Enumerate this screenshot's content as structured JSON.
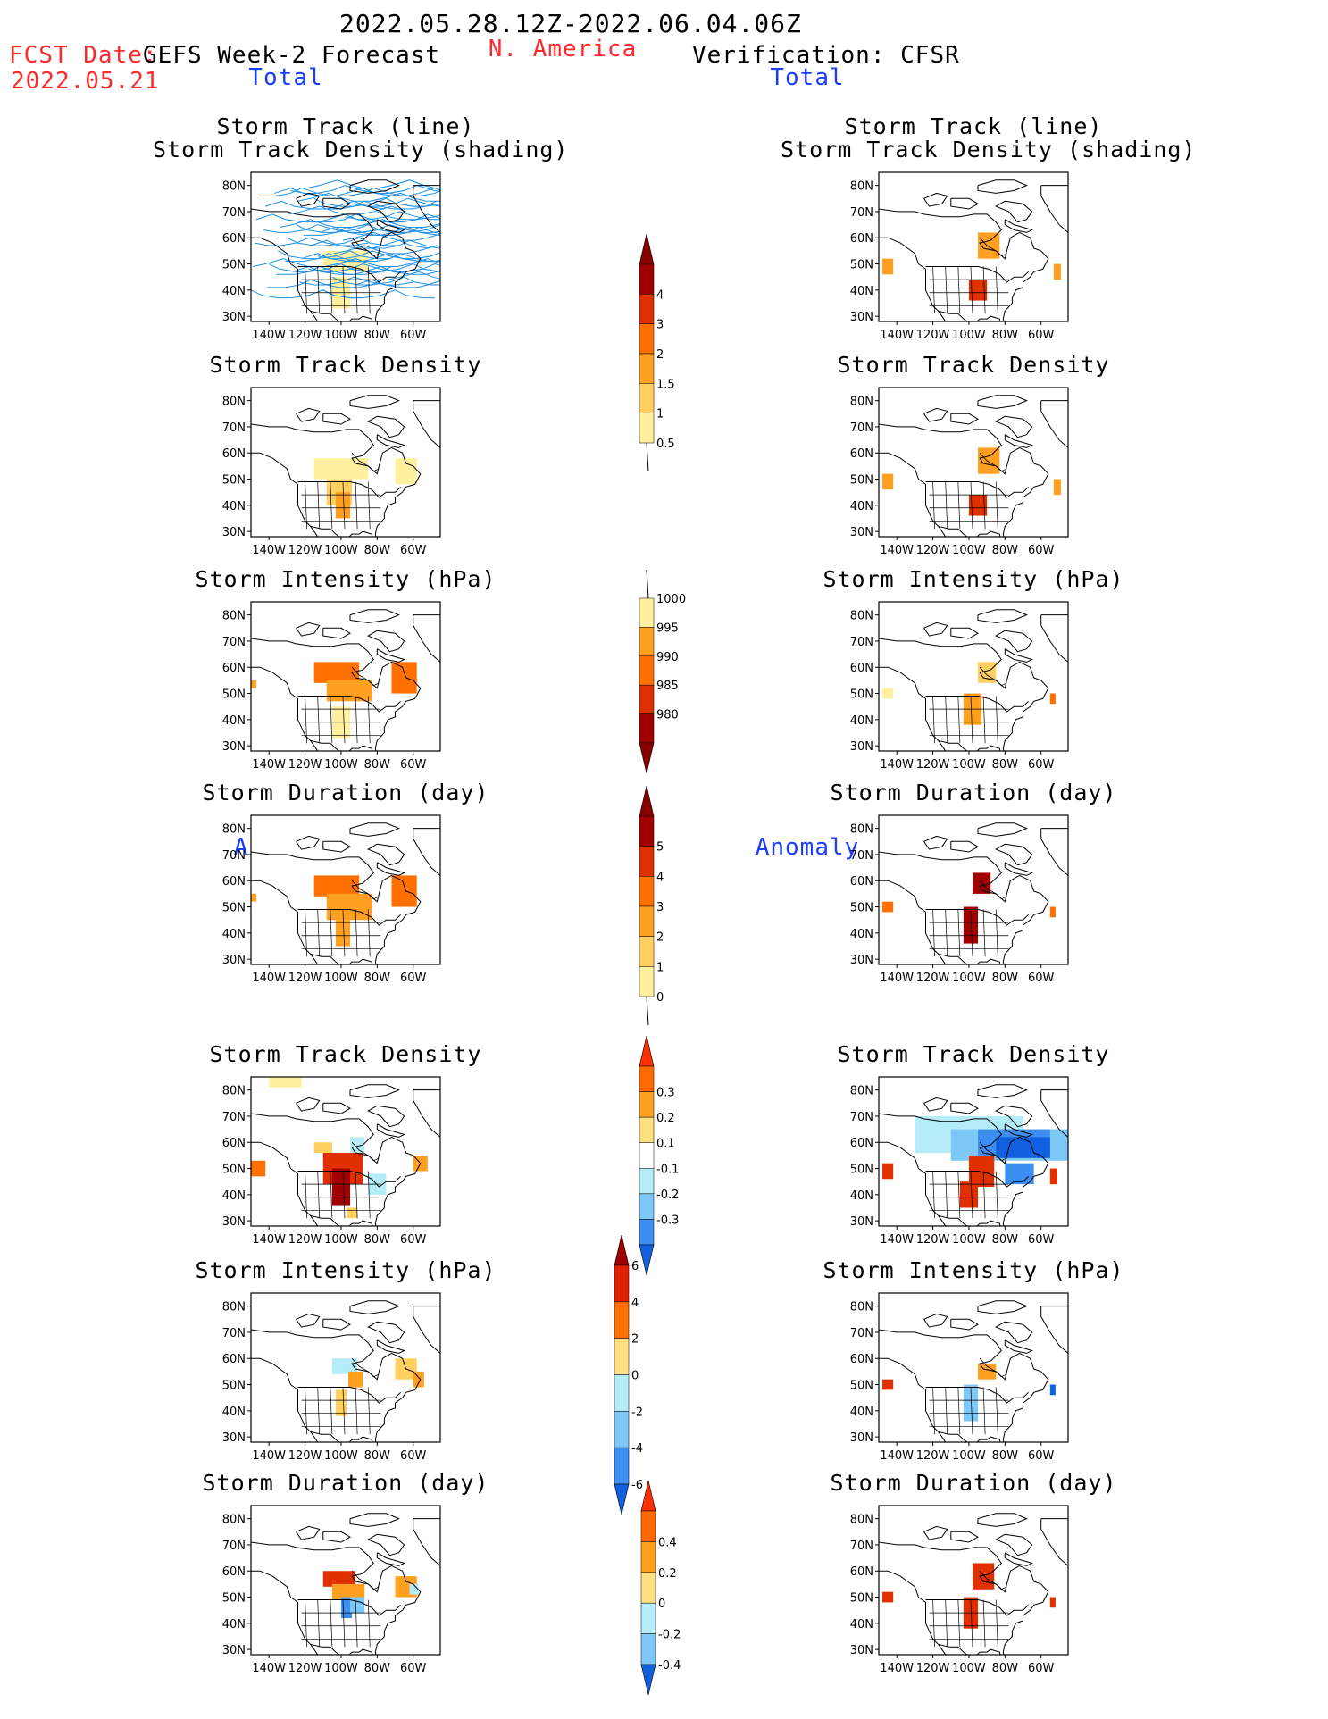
{
  "header": {
    "date_range": "2022.05.28.12Z-2022.06.04.06Z",
    "region": "N. America",
    "fcst_date_label": "FCST Date:",
    "fcst_date": "2022.05.21",
    "left_title": "GEFS Week-2 Forecast",
    "right_title": "Verification: CFSR"
  },
  "sections": {
    "total_label": "Total",
    "anomaly_label": "Anomaly"
  },
  "axes": {
    "lat_ticks": [
      "80N",
      "70N",
      "60N",
      "50N",
      "40N",
      "30N"
    ],
    "lon_ticks": [
      "140W",
      "120W",
      "100W",
      "80W",
      "60W"
    ]
  },
  "panels": {
    "left": [
      {
        "title_lines": [
          "Storm Track (line)",
          "Storm Track Density (shading)"
        ],
        "type": "tracks"
      },
      {
        "title_lines": [
          "Storm Track Density"
        ],
        "type": "density"
      },
      {
        "title_lines": [
          "Storm Intensity (hPa)"
        ],
        "type": "intensity"
      },
      {
        "title_lines": [
          "Storm Duration (day)"
        ],
        "type": "duration"
      },
      {
        "title_lines": [
          "Storm Track Density"
        ],
        "type": "anom_density"
      },
      {
        "title_lines": [
          "Storm Intensity (hPa)"
        ],
        "type": "anom_intensity"
      },
      {
        "title_lines": [
          "Storm Duration (day)"
        ],
        "type": "anom_duration"
      }
    ],
    "right": [
      {
        "title_lines": [
          "Storm Track (line)",
          "Storm Track Density (shading)"
        ],
        "type": "v_tracks"
      },
      {
        "title_lines": [
          "Storm Track Density"
        ],
        "type": "v_density"
      },
      {
        "title_lines": [
          "Storm Intensity (hPa)"
        ],
        "type": "v_intensity"
      },
      {
        "title_lines": [
          "Storm Duration (day)"
        ],
        "type": "v_duration"
      },
      {
        "title_lines": [
          "Storm Track Density"
        ],
        "type": "v_anom_density"
      },
      {
        "title_lines": [
          "Storm Intensity (hPa)"
        ],
        "type": "v_anom_intensity"
      },
      {
        "title_lines": [
          "Storm Duration (day)"
        ],
        "type": "v_anom_duration"
      }
    ]
  },
  "colorbars": [
    {
      "name": "density",
      "labels": [
        "4",
        "3",
        "2",
        "1.5",
        "1",
        "0.5"
      ],
      "colors": [
        "#a00000",
        "#e03000",
        "#ff7000",
        "#ffa020",
        "#ffd060",
        "#fff0a0"
      ],
      "ends": [
        "#8a0000",
        ""
      ]
    },
    {
      "name": "intensity",
      "labels": [
        "1000",
        "995",
        "990",
        "985",
        "980"
      ],
      "colors": [
        "#fff0a0",
        "#ffa020",
        "#ff7000",
        "#e03000",
        "#a00000"
      ],
      "ends": [
        "",
        "#8a0000"
      ]
    },
    {
      "name": "duration",
      "labels": [
        "5",
        "4",
        "3",
        "2",
        "1",
        "0"
      ],
      "colors": [
        "#a00000",
        "#e03000",
        "#ff7000",
        "#ffa020",
        "#ffd060",
        "#fff0a0"
      ],
      "ends": [
        "#8a0000",
        ""
      ]
    },
    {
      "name": "anom_density",
      "labels": [
        "0.3",
        "0.2",
        "0.1",
        "-0.1",
        "-0.2",
        "-0.3"
      ],
      "colors": [
        "#ff6a00",
        "#ffa020",
        "#ffe080",
        "#ffffff",
        "#b4ecf8",
        "#7ec8f8",
        "#3c8ef0"
      ],
      "ends": [
        "#ff3000",
        "#1060e0"
      ]
    },
    {
      "name": "anom_intensity",
      "labels": [
        "6",
        "4",
        "2",
        "0",
        "-2",
        "-4",
        "-6"
      ],
      "colors": [
        "#e02000",
        "#ff7000",
        "#ffe080",
        "#b4ecf8",
        "#7ec8f8",
        "#3c8ef0"
      ],
      "ends": [
        "#a00000",
        "#1060e0"
      ]
    },
    {
      "name": "anom_duration",
      "labels": [
        "0.4",
        "0.2",
        "0",
        "-0.2",
        "-0.4"
      ],
      "colors": [
        "#ff6a00",
        "#ffa020",
        "#ffe080",
        "#b4ecf8",
        "#7ec8f8"
      ],
      "ends": [
        "#ff3000",
        "#1060e0"
      ]
    }
  ],
  "colors": {
    "track_line": "#1e90e6",
    "header_red": "#ff2a2a",
    "section_blue": "#1a3cff"
  }
}
